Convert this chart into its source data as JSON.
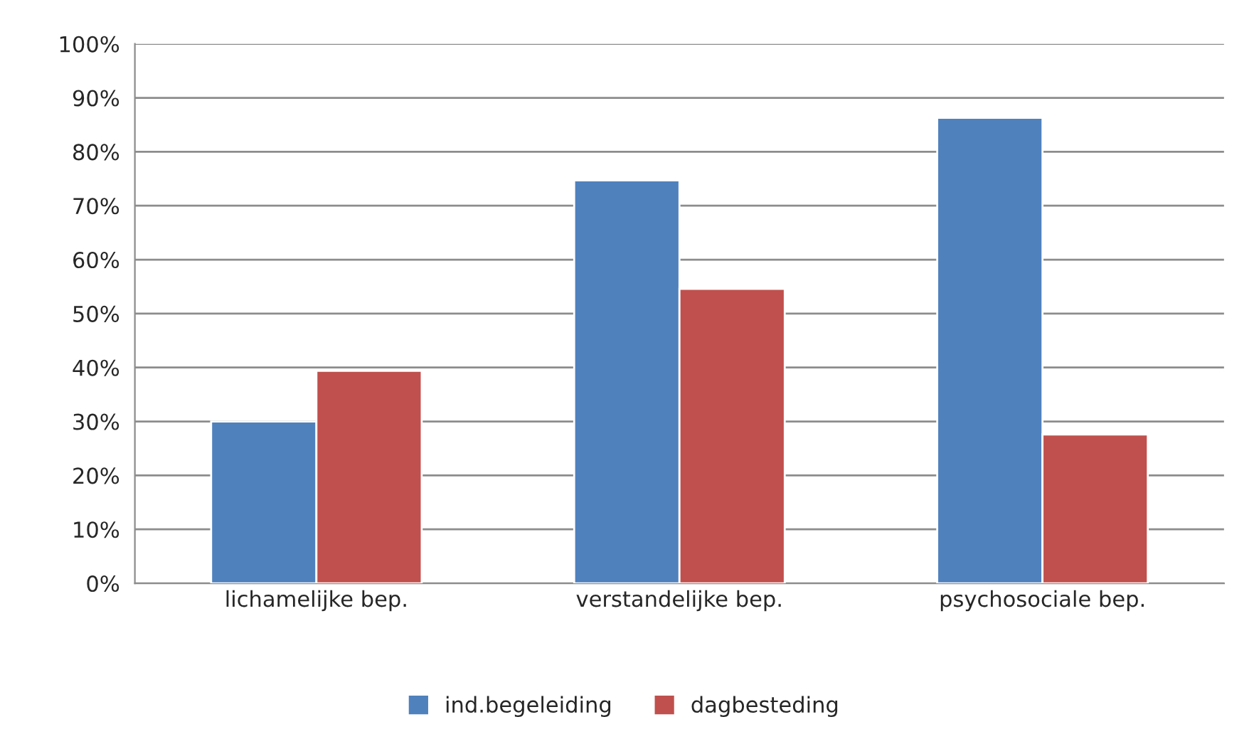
{
  "chart_data": {
    "type": "bar",
    "categories": [
      "lichamelijke bep.",
      "verstandelijke bep.",
      "psychosociale bep."
    ],
    "series": [
      {
        "name": "ind.begeleiding",
        "color": "#4f81bd",
        "values": [
          30,
          74.7,
          86.3
        ]
      },
      {
        "name": "dagbesteding",
        "color": "#c0504d",
        "values": [
          39.4,
          54.6,
          27.6
        ]
      }
    ],
    "ylim": [
      0,
      100
    ],
    "yticks": [
      {
        "value": 0,
        "label": "0%"
      },
      {
        "value": 10,
        "label": "10%"
      },
      {
        "value": 20,
        "label": "20%"
      },
      {
        "value": 30,
        "label": "30%"
      },
      {
        "value": 40,
        "label": "40%"
      },
      {
        "value": 50,
        "label": "50%"
      },
      {
        "value": 60,
        "label": "60%"
      },
      {
        "value": 70,
        "label": "70%"
      },
      {
        "value": 80,
        "label": "80%"
      },
      {
        "value": 90,
        "label": "90%"
      },
      {
        "value": 100,
        "label": "100%"
      }
    ],
    "grid": "y",
    "legend": "bottom"
  }
}
